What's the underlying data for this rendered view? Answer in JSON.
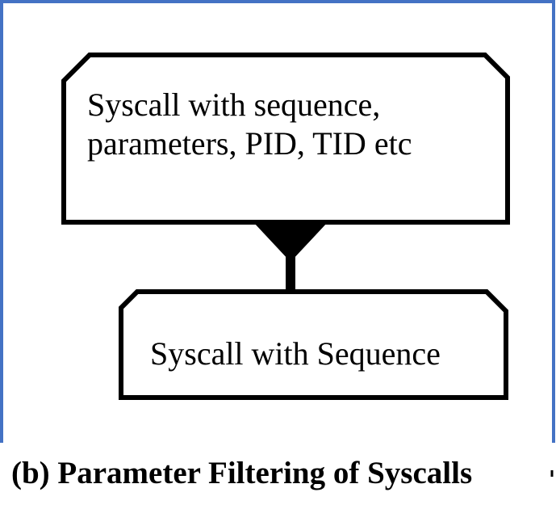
{
  "diagram": {
    "nodes": [
      {
        "id": "source",
        "lines": [
          "Syscall with sequence,",
          "parameters, PID, TID etc"
        ]
      },
      {
        "id": "filtered",
        "lines": [
          "Syscall with Sequence"
        ]
      }
    ],
    "edges": [
      {
        "from": "source",
        "to": "filtered",
        "style": "funnel-arrow"
      }
    ],
    "caption": "(b) Parameter Filtering of Syscalls"
  },
  "colors": {
    "frame_border": "#4472c4",
    "shape_stroke": "#000000",
    "text": "#000000",
    "background": "#ffffff"
  }
}
